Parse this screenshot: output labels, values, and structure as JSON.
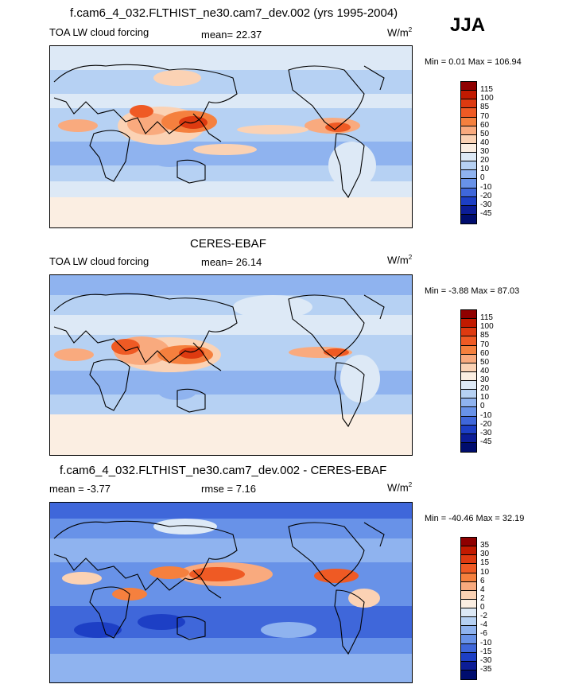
{
  "season": "JJA",
  "units_base": "W/m",
  "units_exp": "2",
  "chart_data": [
    {
      "type": "heatmap",
      "title": "f.cam6_4_032.FLTHIST_ne30.cam7_dev.002 (yrs 1995-2004)",
      "variable": "TOA LW cloud forcing",
      "stat_label": "mean=",
      "stat_value": "22.37",
      "min_label": "Min =",
      "min_value": "0.01",
      "max_label": "Max =",
      "max_value": "106.94",
      "levels": [
        "115",
        "100",
        "85",
        "70",
        "60",
        "50",
        "40",
        "30",
        "20",
        "10",
        "0",
        "-10",
        "-20",
        "-30",
        "-45"
      ],
      "colors": [
        "#8f0000",
        "#c21a00",
        "#de3a10",
        "#ef5a24",
        "#f5803e",
        "#f9aa7e",
        "#fbd2b4",
        "#fbeee2",
        "#dde9f6",
        "#b6d1f3",
        "#8fb3ef",
        "#6892e8",
        "#3f67da",
        "#1d3fc5",
        "#0c1d97",
        "#000d6e"
      ]
    },
    {
      "type": "heatmap",
      "title": "CERES-EBAF",
      "variable": "TOA LW cloud forcing",
      "stat_label": "mean=",
      "stat_value": "26.14",
      "min_label": "Min =",
      "min_value": "-3.88",
      "max_label": "Max =",
      "max_value": "87.03",
      "levels": [
        "115",
        "100",
        "85",
        "70",
        "60",
        "50",
        "40",
        "30",
        "20",
        "10",
        "0",
        "-10",
        "-20",
        "-30",
        "-45"
      ],
      "colors": [
        "#8f0000",
        "#c21a00",
        "#de3a10",
        "#ef5a24",
        "#f5803e",
        "#f9aa7e",
        "#fbd2b4",
        "#fbeee2",
        "#dde9f6",
        "#b6d1f3",
        "#8fb3ef",
        "#6892e8",
        "#3f67da",
        "#1d3fc5",
        "#0c1d97",
        "#000d6e"
      ]
    },
    {
      "type": "heatmap",
      "title": "f.cam6_4_032.FLTHIST_ne30.cam7_dev.002 - CERES-EBAF",
      "mean_label": "mean =",
      "mean_value": "-3.77",
      "rmse_label": "rmse =",
      "rmse_value": "7.16",
      "min_label": "Min =",
      "min_value": "-40.46",
      "max_label": "Max =",
      "max_value": "32.19",
      "levels": [
        "35",
        "30",
        "15",
        "10",
        "6",
        "4",
        "2",
        "0",
        "-2",
        "-4",
        "-6",
        "-10",
        "-15",
        "-30",
        "-35"
      ],
      "colors": [
        "#8f0000",
        "#c21a00",
        "#de3a10",
        "#ef5a24",
        "#f5803e",
        "#f9aa7e",
        "#fbd2b4",
        "#fbeee2",
        "#dde9f6",
        "#b6d1f3",
        "#8fb3ef",
        "#6892e8",
        "#3f67da",
        "#1d3fc5",
        "#0c1d97",
        "#000d6e"
      ]
    }
  ]
}
